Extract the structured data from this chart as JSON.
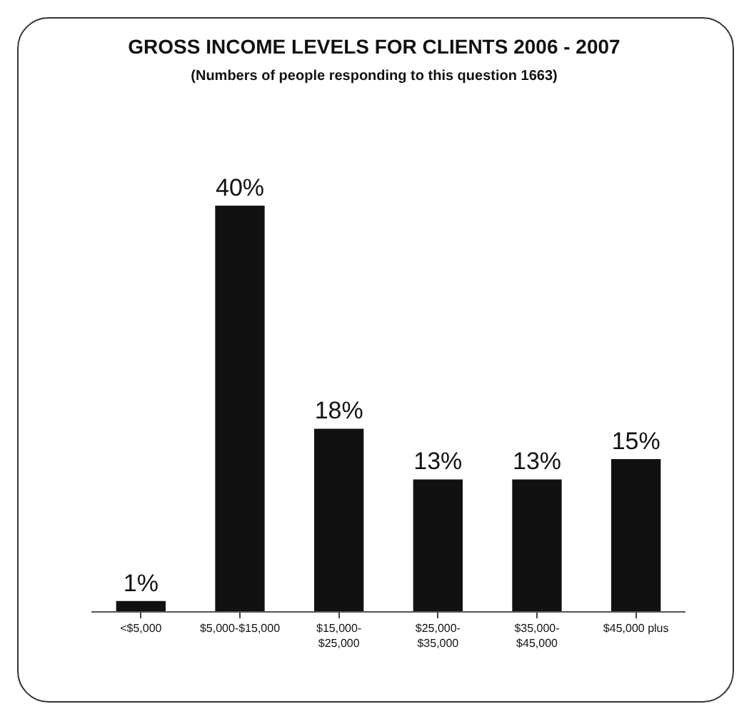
{
  "chart_data": {
    "type": "bar",
    "title": "GROSS INCOME LEVELS FOR CLIENTS 2006 - 2007",
    "subtitle": "(Numbers of people responding to this question 1663)",
    "categories": [
      "<$5,000",
      "$5,000-$15,000",
      "$15,000-\n$25,000",
      "$25,000-\n$35,000",
      "$35,000-\n$45,000",
      "$45,000 plus"
    ],
    "values": [
      1,
      40,
      18,
      13,
      13,
      15
    ],
    "value_labels": [
      "1%",
      "40%",
      "18%",
      "13%",
      "13%",
      "15%"
    ],
    "color": "#111111"
  }
}
